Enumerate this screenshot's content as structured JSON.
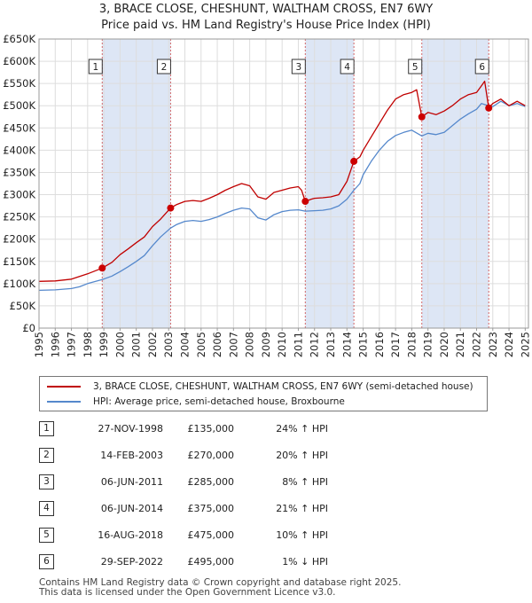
{
  "title_line1": "3, BRACE CLOSE, CHESHUNT, WALTHAM CROSS, EN7 6WY",
  "title_line2": "Price paid vs. HM Land Registry's House Price Index (HPI)",
  "colors": {
    "property": "#c00000",
    "hpi": "#5588cc",
    "shade": "#dde6f5",
    "marker": "#cc0000"
  },
  "chart_data": {
    "type": "line",
    "xlim": [
      1995,
      2025.2
    ],
    "ylim": [
      0,
      650000
    ],
    "ytick_labels": [
      "£0",
      "£50K",
      "£100K",
      "£150K",
      "£200K",
      "£250K",
      "£300K",
      "£350K",
      "£400K",
      "£450K",
      "£500K",
      "£550K",
      "£600K",
      "£650K"
    ],
    "ytick_values": [
      0,
      50000,
      100000,
      150000,
      200000,
      250000,
      300000,
      350000,
      400000,
      450000,
      500000,
      550000,
      600000,
      650000
    ],
    "xtick_labels": [
      "1995",
      "1996",
      "1997",
      "1998",
      "1999",
      "2000",
      "2001",
      "2002",
      "2003",
      "2004",
      "2005",
      "2006",
      "2007",
      "2008",
      "2009",
      "2010",
      "2011",
      "2012",
      "2013",
      "2014",
      "2015",
      "2016",
      "2017",
      "2018",
      "2019",
      "2020",
      "2021",
      "2022",
      "2023",
      "2024",
      "2025"
    ],
    "shaded_periods": [
      [
        1998.9,
        2003.12
      ],
      [
        2011.43,
        2014.43
      ],
      [
        2018.62,
        2022.75
      ]
    ],
    "sales": [
      {
        "n": "1",
        "x": 1998.9,
        "y": 135000
      },
      {
        "n": "2",
        "x": 2003.12,
        "y": 270000
      },
      {
        "n": "3",
        "x": 2011.43,
        "y": 285000
      },
      {
        "n": "4",
        "x": 2014.43,
        "y": 375000
      },
      {
        "n": "5",
        "x": 2018.62,
        "y": 475000
      },
      {
        "n": "6",
        "x": 2022.75,
        "y": 495000
      }
    ],
    "series": [
      {
        "name": "3, BRACE CLOSE, CHESHUNT, WALTHAM CROSS, EN7 6WY (semi-detached house)",
        "x": [
          1995,
          1996,
          1997,
          1997.5,
          1998,
          1998.9,
          1999.5,
          2000,
          2000.5,
          2001,
          2001.5,
          2002,
          2002.5,
          2003.12,
          2003.5,
          2004,
          2004.5,
          2005,
          2005.5,
          2006,
          2006.5,
          2007,
          2007.5,
          2008,
          2008.5,
          2009,
          2009.5,
          2010,
          2010.5,
          2011,
          2011.2,
          2011.43,
          2011.8,
          2012,
          2012.5,
          2013,
          2013.5,
          2014,
          2014.43,
          2014.8,
          2015,
          2015.5,
          2016,
          2016.5,
          2017,
          2017.5,
          2018,
          2018.3,
          2018.62,
          2019,
          2019.5,
          2020,
          2020.5,
          2021,
          2021.5,
          2022,
          2022.3,
          2022.5,
          2022.75,
          2023,
          2023.5,
          2024,
          2024.5,
          2025
        ],
        "y": [
          105000,
          106000,
          110000,
          116000,
          122000,
          135000,
          148000,
          165000,
          178000,
          192000,
          205000,
          228000,
          245000,
          270000,
          278000,
          285000,
          287000,
          285000,
          292000,
          300000,
          310000,
          318000,
          325000,
          320000,
          295000,
          290000,
          305000,
          310000,
          315000,
          318000,
          310000,
          285000,
          290000,
          292000,
          293000,
          295000,
          300000,
          330000,
          375000,
          385000,
          400000,
          430000,
          460000,
          490000,
          515000,
          525000,
          530000,
          536000,
          475000,
          485000,
          480000,
          488000,
          500000,
          515000,
          525000,
          530000,
          545000,
          555000,
          495000,
          505000,
          515000,
          500000,
          510000,
          500000
        ]
      },
      {
        "name": "HPI: Average price, semi-detached house, Broxbourne",
        "x": [
          1995,
          1996,
          1997,
          1997.5,
          1998,
          1998.9,
          1999.5,
          2000,
          2000.5,
          2001,
          2001.5,
          2002,
          2002.5,
          2003.12,
          2003.5,
          2004,
          2004.5,
          2005,
          2005.5,
          2006,
          2006.5,
          2007,
          2007.5,
          2008,
          2008.5,
          2009,
          2009.5,
          2010,
          2010.5,
          2011,
          2011.43,
          2012,
          2012.5,
          2013,
          2013.5,
          2014,
          2014.43,
          2014.8,
          2015,
          2015.5,
          2016,
          2016.5,
          2017,
          2017.5,
          2018,
          2018.62,
          2019,
          2019.5,
          2020,
          2020.5,
          2021,
          2021.5,
          2022,
          2022.3,
          2022.75,
          2023,
          2023.5,
          2024,
          2024.5,
          2025
        ],
        "y": [
          85000,
          86000,
          89000,
          93000,
          100000,
          109000,
          117000,
          127000,
          138000,
          150000,
          163000,
          185000,
          205000,
          225000,
          233000,
          240000,
          242000,
          240000,
          244000,
          250000,
          258000,
          265000,
          270000,
          268000,
          248000,
          243000,
          255000,
          262000,
          265000,
          266000,
          263000,
          264000,
          265000,
          268000,
          275000,
          290000,
          310000,
          325000,
          345000,
          375000,
          400000,
          420000,
          433000,
          440000,
          445000,
          432000,
          438000,
          435000,
          440000,
          455000,
          470000,
          482000,
          492000,
          505000,
          500000,
          498000,
          510000,
          500000,
          505000,
          498000
        ]
      }
    ]
  },
  "legend": {
    "property_label": "3, BRACE CLOSE, CHESHUNT, WALTHAM CROSS, EN7 6WY (semi-detached house)",
    "hpi_label": "HPI: Average price, semi-detached house, Broxbourne"
  },
  "sales_table": [
    {
      "n": "1",
      "date": "27-NOV-1998",
      "price": "£135,000",
      "hpi": "24% ↑ HPI"
    },
    {
      "n": "2",
      "date": "14-FEB-2003",
      "price": "£270,000",
      "hpi": "20% ↑ HPI"
    },
    {
      "n": "3",
      "date": "06-JUN-2011",
      "price": "£285,000",
      "hpi": "8% ↑ HPI"
    },
    {
      "n": "4",
      "date": "06-JUN-2014",
      "price": "£375,000",
      "hpi": "21% ↑ HPI"
    },
    {
      "n": "5",
      "date": "16-AUG-2018",
      "price": "£475,000",
      "hpi": "10% ↑ HPI"
    },
    {
      "n": "6",
      "date": "29-SEP-2022",
      "price": "£495,000",
      "hpi": "1% ↓ HPI"
    }
  ],
  "footer_line1": "Contains HM Land Registry data © Crown copyright and database right 2025.",
  "footer_line2": "This data is licensed under the Open Government Licence v3.0."
}
